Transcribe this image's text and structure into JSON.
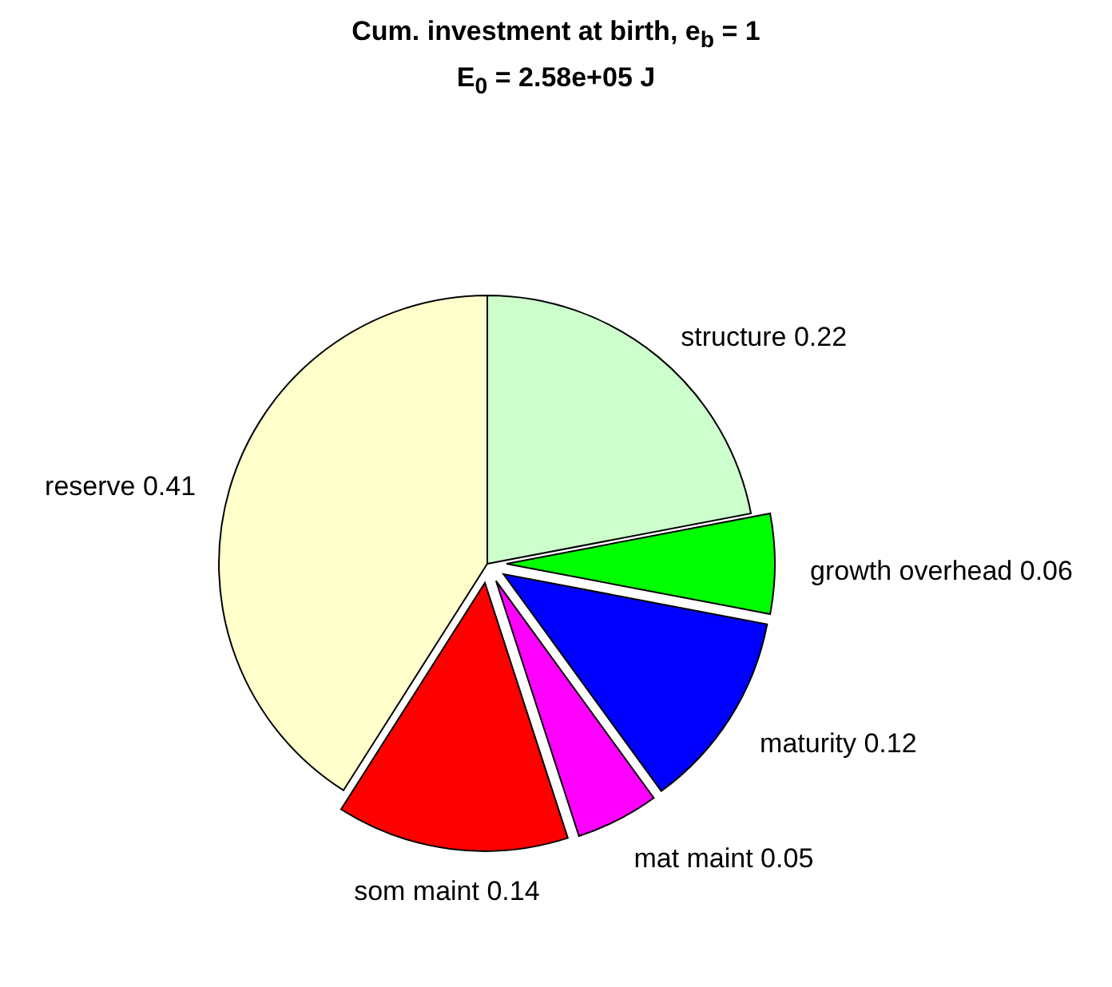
{
  "chart_data": {
    "type": "pie",
    "title": "Cum. investment at birth, e$_{b}$ = 1",
    "subtitle": "E$_{0}$ = 2.58e+05 J",
    "categories": [
      "structure 0.22",
      "growth overhead 0.06",
      "maturity 0.12",
      "mat maint 0.05",
      "som maint 0.14",
      "reserve 0.41"
    ],
    "values": [
      0.22,
      0.06,
      0.12,
      0.05,
      0.14,
      0.41
    ],
    "colors": [
      "#ccffcc",
      "#00ff00",
      "#0000ff",
      "#ff00ff",
      "#ff0000",
      "#ffffcc"
    ],
    "data_labels": false
  }
}
